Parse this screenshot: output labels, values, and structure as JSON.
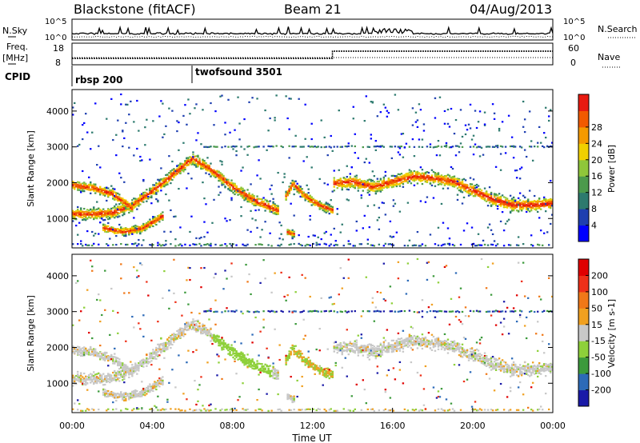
{
  "header": {
    "station": "Blackstone (fitACF)",
    "beam": "Beam 21",
    "date": "04/Aug/2013"
  },
  "noise_panel": {
    "left_label": "N.Sky",
    "right_label": "N.Search",
    "left_ticks": [
      "10^5",
      "10^0"
    ],
    "right_ticks": [
      "10^5",
      "10^0"
    ]
  },
  "freq_panel": {
    "left_label_line1": "Freq.",
    "left_label_line2": "[MHz]",
    "left_ticks": [
      "18",
      "8"
    ],
    "right_label": "Nave",
    "right_ticks": [
      "60",
      "0"
    ]
  },
  "cpid": {
    "label": "CPID",
    "modes": [
      {
        "name": "rbsp 200",
        "start_hour": 0
      },
      {
        "name": "twofsound 3501",
        "start_hour": 6
      }
    ]
  },
  "x_axis": {
    "title": "Time UT",
    "ticks": [
      "00:00",
      "04:00",
      "08:00",
      "12:00",
      "16:00",
      "20:00",
      "00:00"
    ]
  },
  "chart_data": [
    {
      "type": "heatmap",
      "title": "",
      "ylabel": "Slant Range [km]",
      "xlabel": "",
      "xlim": [
        0,
        24
      ],
      "ylim": [
        180,
        4600
      ],
      "yticks": [
        "1000",
        "2000",
        "3000",
        "4000"
      ],
      "colorbar": {
        "label": "Power [dB]",
        "ticks": [
          "4",
          "8",
          "12",
          "16",
          "20",
          "24",
          "28"
        ],
        "colors": [
          "#0000ff",
          "#1e3fb0",
          "#2d7a6e",
          "#4c9a4c",
          "#8fc63a",
          "#f0d000",
          "#f59a00",
          "#f25a00",
          "#e81a10"
        ]
      },
      "bands": [
        {
          "points": [
            [
              0,
              1150
            ],
            [
              1,
              1150
            ],
            [
              2,
              1180
            ],
            [
              3,
              1400
            ],
            [
              4,
              1800
            ],
            [
              5,
              2250
            ],
            [
              6,
              2700
            ],
            [
              7,
              2350
            ],
            [
              8,
              1900
            ],
            [
              9,
              1550
            ],
            [
              10,
              1300
            ],
            [
              10.3,
              1250
            ]
          ],
          "width": 230
        },
        {
          "points": [
            [
              0,
              1950
            ],
            [
              1,
              1880
            ],
            [
              2,
              1700
            ],
            [
              3,
              1300
            ]
          ],
          "width": 200
        },
        {
          "points": [
            [
              1.5,
              760
            ],
            [
              2.5,
              650
            ],
            [
              3.5,
              750
            ],
            [
              4.5,
              1100
            ]
          ],
          "width": 170
        },
        {
          "points": [
            [
              10.6,
              1600
            ],
            [
              11,
              2000
            ],
            [
              11.5,
              1700
            ],
            [
              12,
              1500
            ],
            [
              12.5,
              1350
            ],
            [
              13,
              1250
            ]
          ],
          "width": 170
        },
        {
          "points": [
            [
              13,
              2000
            ],
            [
              14,
              2050
            ],
            [
              15,
              1900
            ],
            [
              16,
              2050
            ],
            [
              17,
              2200
            ],
            [
              18,
              2150
            ],
            [
              19,
              2050
            ],
            [
              20,
              1800
            ],
            [
              21,
              1550
            ],
            [
              22,
              1400
            ],
            [
              23,
              1400
            ],
            [
              24,
              1450
            ]
          ],
          "width": 260
        },
        {
          "points": [
            [
              10.7,
              650
            ],
            [
              11.1,
              580
            ]
          ],
          "width": 140
        }
      ]
    },
    {
      "type": "heatmap",
      "title": "",
      "ylabel": "Slant Range [km]",
      "xlabel": "Time UT",
      "xlim": [
        0,
        24
      ],
      "ylim": [
        180,
        4600
      ],
      "yticks": [
        "1000",
        "2000",
        "3000",
        "4000"
      ],
      "colorbar": {
        "label": "Velocity [m s-1]",
        "ticks": [
          "200",
          "100",
          "50",
          "15",
          "-15",
          "-50",
          "-100",
          "-200"
        ],
        "colors": [
          "#1a1aa8",
          "#2c6ab8",
          "#3c9a3c",
          "#8ed03a",
          "#c8c8c8",
          "#f0a020",
          "#f07818",
          "#ee3018",
          "#e00000"
        ]
      }
    }
  ]
}
